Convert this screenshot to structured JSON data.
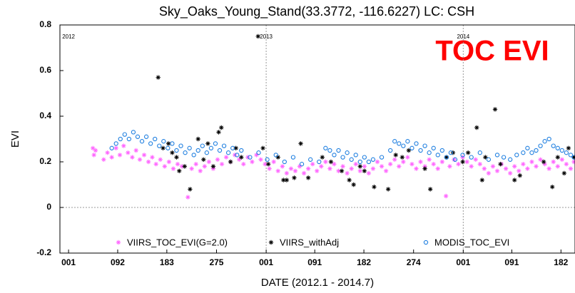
{
  "chart_data": {
    "type": "scatter",
    "title": "Sky_Oaks_Young_Stand(33.3772, -116.6227) LC: CSH",
    "annotation": "TOC EVI",
    "x_label": "DATE (2012.1 - 2014.7)",
    "y_label": "EVI",
    "xlim": [
      -16,
      938
    ],
    "ylim": [
      -0.2,
      0.8
    ],
    "yticks": [
      -0.2,
      0,
      0.2,
      0.4,
      0.6,
      0.8
    ],
    "xticks": [
      {
        "value": 0,
        "label": "001"
      },
      {
        "value": 91,
        "label": "092"
      },
      {
        "value": 182,
        "label": "183"
      },
      {
        "value": 274,
        "label": "275"
      },
      {
        "value": 366,
        "label": "001"
      },
      {
        "value": 456,
        "label": "091"
      },
      {
        "value": 547,
        "label": "182"
      },
      {
        "value": 639,
        "label": "274"
      },
      {
        "value": 731,
        "label": "001"
      },
      {
        "value": 821,
        "label": "091"
      },
      {
        "value": 912,
        "label": "182"
      }
    ],
    "year_markers": [
      {
        "value": 0,
        "label": "2012"
      },
      {
        "value": 366,
        "label": "2013"
      },
      {
        "value": 731,
        "label": "2014"
      }
    ],
    "zero_line": true,
    "series": [
      {
        "name": "VIIRS_TOC_EVI(G=2.0)",
        "color": "#ff66ff",
        "marker": "asterisk",
        "x": [
          45,
          47,
          50,
          65,
          72,
          80,
          88,
          95,
          102,
          110,
          118,
          125,
          132,
          140,
          148,
          155,
          162,
          170,
          178,
          186,
          194,
          202,
          210,
          221,
          228,
          236,
          244,
          252,
          260,
          268,
          276,
          284,
          292,
          300,
          308,
          316,
          324,
          332,
          340,
          348,
          356,
          364,
          372,
          380,
          388,
          396,
          404,
          412,
          420,
          428,
          436,
          444,
          452,
          460,
          468,
          476,
          484,
          492,
          500,
          508,
          516,
          524,
          532,
          540,
          548,
          556,
          564,
          572,
          580,
          588,
          596,
          604,
          612,
          620,
          628,
          636,
          644,
          652,
          660,
          668,
          676,
          684,
          692,
          699,
          706,
          714,
          722,
          730,
          738,
          746,
          754,
          762,
          770,
          778,
          786,
          794,
          802,
          810,
          818,
          826,
          834,
          842,
          850,
          858,
          866,
          874,
          882,
          890,
          898,
          906,
          914,
          922,
          930,
          936
        ],
        "values": [
          0.26,
          0.23,
          0.25,
          0.21,
          0.24,
          0.22,
          0.26,
          0.23,
          0.27,
          0.24,
          0.22,
          0.25,
          0.21,
          0.23,
          0.2,
          0.22,
          0.19,
          0.21,
          0.18,
          0.2,
          0.17,
          0.19,
          0.18,
          0.045,
          0.17,
          0.19,
          0.16,
          0.18,
          0.2,
          0.17,
          0.21,
          0.19,
          0.22,
          0.2,
          0.23,
          0.21,
          0.19,
          0.22,
          0.2,
          0.23,
          0.21,
          0.19,
          0.17,
          0.2,
          0.16,
          0.18,
          0.15,
          0.17,
          0.16,
          0.18,
          0.15,
          0.17,
          0.19,
          0.16,
          0.18,
          0.2,
          0.17,
          0.19,
          0.16,
          0.18,
          0.15,
          0.17,
          0.19,
          0.16,
          0.18,
          0.15,
          0.17,
          0.2,
          0.18,
          0.16,
          0.19,
          0.21,
          0.18,
          0.2,
          0.22,
          0.19,
          0.17,
          0.2,
          0.18,
          0.21,
          0.19,
          0.17,
          0.2,
          0.05,
          0.18,
          0.21,
          0.19,
          0.22,
          0.2,
          0.18,
          0.21,
          0.19,
          0.17,
          0.15,
          0.18,
          0.16,
          0.19,
          0.17,
          0.15,
          0.18,
          0.16,
          0.19,
          0.17,
          0.2,
          0.18,
          0.21,
          0.19,
          0.17,
          0.2,
          0.18,
          0.21,
          0.19,
          0.17,
          0.2
        ]
      },
      {
        "name": "VIIRS_withAdj",
        "color": "#000000",
        "marker": "asterisk",
        "x": [
          166,
          175,
          185,
          192,
          200,
          205,
          215,
          225,
          240,
          250,
          258,
          268,
          278,
          283,
          300,
          310,
          320,
          351,
          360,
          370,
          388,
          398,
          404,
          418,
          430,
          444,
          470,
          486,
          506,
          520,
          528,
          540,
          548,
          566,
          592,
          606,
          618,
          630,
          660,
          670,
          700,
          712,
          730,
          740,
          756,
          766,
          772,
          790,
          800,
          826,
          836,
          880,
          896,
          906,
          918,
          926,
          936
        ],
        "values": [
          0.57,
          0.26,
          0.28,
          0.24,
          0.22,
          0.16,
          0.18,
          0.08,
          0.3,
          0.21,
          0.28,
          0.18,
          0.33,
          0.35,
          0.2,
          0.26,
          0.22,
          0.75,
          0.26,
          0.19,
          0.22,
          0.12,
          0.12,
          0.13,
          0.28,
          0.13,
          0.22,
          0.2,
          0.16,
          0.12,
          0.1,
          0.18,
          0.16,
          0.09,
          0.08,
          0.23,
          0.22,
          0.25,
          0.17,
          0.08,
          0.22,
          0.24,
          0.2,
          0.24,
          0.35,
          0.12,
          0.22,
          0.43,
          0.19,
          0.12,
          0.14,
          0.2,
          0.09,
          0.22,
          0.15,
          0.26,
          0.22
        ]
      },
      {
        "name": "MODIS_TOC_EVI",
        "color": "#1f7fe0",
        "marker": "circle",
        "x": [
          80,
          88,
          96,
          104,
          112,
          120,
          128,
          136,
          144,
          152,
          160,
          168,
          176,
          184,
          192,
          200,
          208,
          216,
          224,
          232,
          240,
          248,
          256,
          264,
          272,
          280,
          288,
          296,
          304,
          312,
          320,
          336,
          352,
          368,
          384,
          400,
          416,
          432,
          448,
          464,
          476,
          484,
          492,
          500,
          508,
          516,
          524,
          532,
          540,
          548,
          556,
          564,
          580,
          596,
          604,
          612,
          620,
          628,
          636,
          644,
          652,
          660,
          668,
          676,
          684,
          692,
          700,
          708,
          716,
          730,
          746,
          762,
          778,
          794,
          806,
          818,
          830,
          842,
          850,
          858,
          866,
          874,
          882,
          890,
          898,
          906,
          914,
          922,
          930,
          936
        ],
        "values": [
          0.26,
          0.28,
          0.3,
          0.32,
          0.3,
          0.33,
          0.31,
          0.29,
          0.31,
          0.28,
          0.3,
          0.27,
          0.29,
          0.26,
          0.28,
          0.25,
          0.27,
          0.24,
          0.26,
          0.23,
          0.25,
          0.27,
          0.24,
          0.26,
          0.28,
          0.25,
          0.27,
          0.24,
          0.26,
          0.23,
          0.25,
          0.22,
          0.24,
          0.21,
          0.23,
          0.2,
          0.22,
          0.19,
          0.21,
          0.2,
          0.26,
          0.25,
          0.23,
          0.25,
          0.22,
          0.24,
          0.21,
          0.23,
          0.2,
          0.22,
          0.2,
          0.21,
          0.22,
          0.25,
          0.29,
          0.28,
          0.27,
          0.29,
          0.26,
          0.28,
          0.25,
          0.27,
          0.24,
          0.26,
          0.23,
          0.25,
          0.22,
          0.24,
          0.21,
          0.23,
          0.22,
          0.24,
          0.21,
          0.23,
          0.22,
          0.21,
          0.23,
          0.24,
          0.26,
          0.24,
          0.25,
          0.27,
          0.29,
          0.3,
          0.27,
          0.26,
          0.25,
          0.24,
          0.23,
          0.22
        ]
      }
    ]
  }
}
